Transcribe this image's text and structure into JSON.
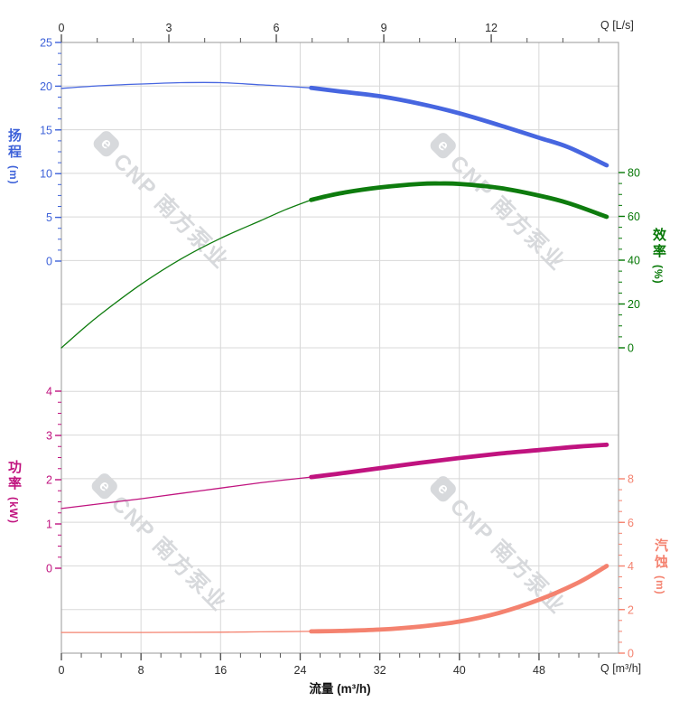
{
  "watermark": {
    "logo_letter": "e",
    "text": "CNP 南方泵业"
  },
  "chart_data": {
    "type": "line",
    "title": "",
    "grid": "on",
    "axes": {
      "top": {
        "label": "Q [L/s]",
        "ticks": [
          0,
          3,
          6,
          9,
          12
        ],
        "range": [
          0,
          15.6
        ],
        "color": "#2b2b2b"
      },
      "bottom": {
        "label": "Q [m³/h]",
        "title": "流量 (m³/h)",
        "ticks": [
          0,
          8,
          16,
          24,
          32,
          40,
          48
        ],
        "range": [
          0,
          56
        ],
        "color": "#2b2b2b"
      },
      "head": {
        "title_cjk": "扬程",
        "title_unit": "(m)",
        "side": "left",
        "ticks": [
          0,
          5,
          10,
          15,
          20,
          25
        ],
        "range": [
          0,
          25
        ],
        "color": "#3e62d9"
      },
      "efficiency": {
        "title_cjk": "效率",
        "title_unit": "(%)",
        "side": "right",
        "ticks": [
          0,
          20,
          40,
          60,
          80
        ],
        "range": [
          0,
          80
        ],
        "color": "#067806"
      },
      "power": {
        "title_cjk": "功率",
        "title_unit": "(kW)",
        "side": "left",
        "ticks": [
          0,
          1,
          2,
          3,
          4
        ],
        "range": [
          0,
          4
        ],
        "color": "#c0137f"
      },
      "npsh": {
        "title_cjk": "汽蚀",
        "title_unit": "(m)",
        "side": "right",
        "ticks": [
          0,
          2,
          4,
          6,
          8
        ],
        "range": [
          0,
          8
        ],
        "color": "#f4826f"
      }
    },
    "series": [
      {
        "id": "head",
        "axis": "head",
        "color": "#4766e0",
        "split_q": 25.1,
        "points": [
          [
            0,
            19.75
          ],
          [
            4,
            20.05
          ],
          [
            8,
            20.25
          ],
          [
            12,
            20.4
          ],
          [
            16,
            20.4
          ],
          [
            20,
            20.15
          ],
          [
            22.5,
            20.0
          ],
          [
            25.1,
            19.8
          ],
          [
            28,
            19.4
          ],
          [
            32,
            18.85
          ],
          [
            36,
            18.0
          ],
          [
            40,
            16.9
          ],
          [
            44,
            15.55
          ],
          [
            48,
            14.1
          ],
          [
            51,
            13.0
          ],
          [
            54.8,
            10.95
          ]
        ]
      },
      {
        "id": "efficiency",
        "axis": "efficiency",
        "color": "#0e7c0e",
        "split_q": 25.1,
        "points": [
          [
            0,
            0
          ],
          [
            2,
            8
          ],
          [
            4,
            15.5
          ],
          [
            8,
            29
          ],
          [
            12,
            40.5
          ],
          [
            16,
            50
          ],
          [
            20,
            58
          ],
          [
            22.5,
            63
          ],
          [
            25.1,
            67.5
          ],
          [
            28,
            70.5
          ],
          [
            32,
            73.2
          ],
          [
            36,
            74.8
          ],
          [
            38,
            75.0
          ],
          [
            40,
            74.8
          ],
          [
            44,
            73.0
          ],
          [
            48,
            69.5
          ],
          [
            51,
            66.0
          ],
          [
            54.8,
            59.8
          ]
        ]
      },
      {
        "id": "power",
        "axis": "power",
        "color": "#c0137f",
        "split_q": 25.1,
        "points": [
          [
            0,
            1.35
          ],
          [
            4,
            1.46
          ],
          [
            8,
            1.57
          ],
          [
            12,
            1.69
          ],
          [
            16,
            1.81
          ],
          [
            20,
            1.93
          ],
          [
            25.1,
            2.06
          ],
          [
            28,
            2.14
          ],
          [
            32,
            2.26
          ],
          [
            36,
            2.38
          ],
          [
            40,
            2.49
          ],
          [
            44,
            2.59
          ],
          [
            48,
            2.67
          ],
          [
            52,
            2.75
          ],
          [
            54.8,
            2.79
          ]
        ]
      },
      {
        "id": "npsh",
        "axis": "npsh",
        "color": "#f4826f",
        "split_q": 25.1,
        "points": [
          [
            0,
            0.95
          ],
          [
            8,
            0.95
          ],
          [
            16,
            0.96
          ],
          [
            20,
            0.98
          ],
          [
            25.1,
            1.0
          ],
          [
            28,
            1.02
          ],
          [
            32,
            1.08
          ],
          [
            36,
            1.22
          ],
          [
            40,
            1.45
          ],
          [
            44,
            1.85
          ],
          [
            48,
            2.45
          ],
          [
            52,
            3.25
          ],
          [
            54.8,
            4.0
          ]
        ]
      }
    ]
  }
}
